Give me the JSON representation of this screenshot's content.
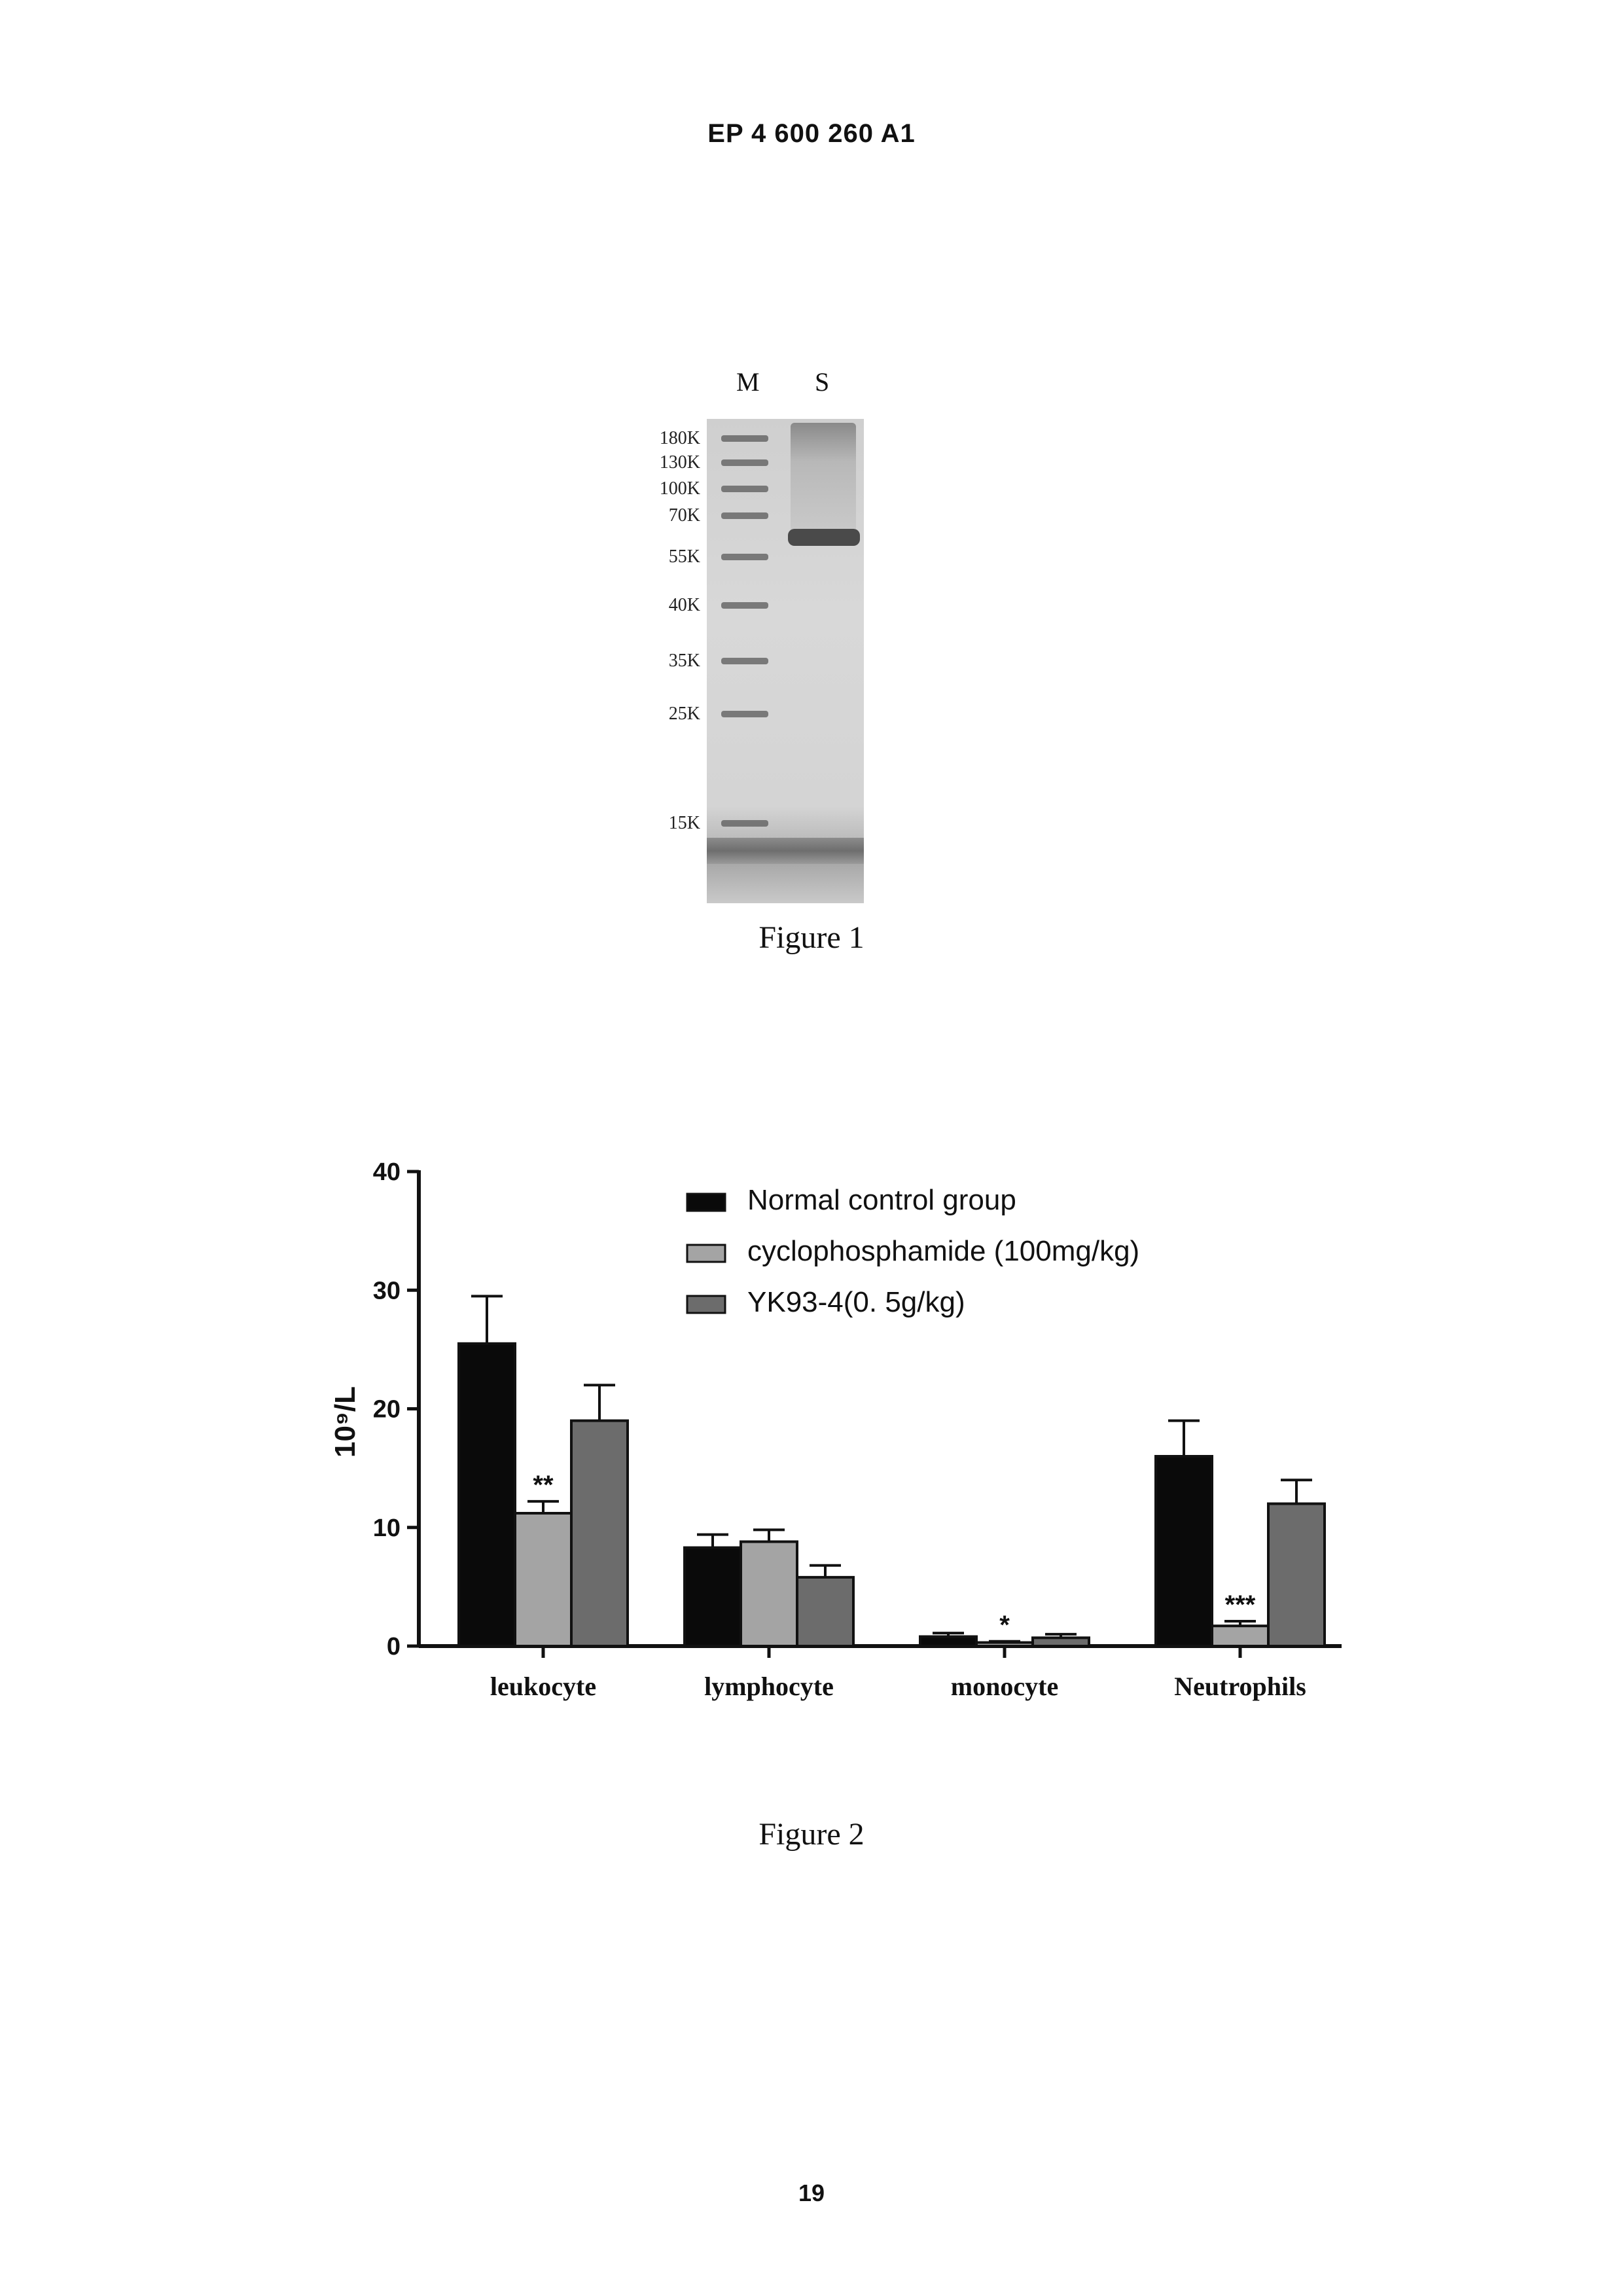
{
  "header": {
    "publication": "EP 4 600 260 A1"
  },
  "figure1": {
    "caption": "Figure 1",
    "lanes": [
      "M",
      "S"
    ],
    "markers": [
      {
        "label": "180K",
        "pos": 0.04
      },
      {
        "label": "130K",
        "pos": 0.09
      },
      {
        "label": "100K",
        "pos": 0.145
      },
      {
        "label": "70K",
        "pos": 0.2
      },
      {
        "label": "55K",
        "pos": 0.285
      },
      {
        "label": "40K",
        "pos": 0.385
      },
      {
        "label": "35K",
        "pos": 0.5
      },
      {
        "label": "25K",
        "pos": 0.61
      },
      {
        "label": "15K",
        "pos": 0.835
      }
    ],
    "sample_band_pos": 0.245
  },
  "figure2": {
    "caption": "Figure 2",
    "chart_data": {
      "type": "bar",
      "categories": [
        "leukocyte",
        "lymphocyte",
        "monocyte",
        "Neutrophils"
      ],
      "ylabel": "10⁹/L",
      "ylim": [
        0,
        40
      ],
      "yticks": [
        0,
        10,
        20,
        30,
        40
      ],
      "legend_position": "top-right",
      "series": [
        {
          "name": "Normal control group",
          "color": "#0a0a0a",
          "values": [
            25.5,
            8.3,
            0.8,
            16
          ],
          "errors": [
            4,
            1.1,
            0.3,
            3
          ]
        },
        {
          "name": "cyclophosphamide (100mg/kg)",
          "color": "#a4a4a4",
          "values": [
            11.2,
            8.8,
            0.3,
            1.7
          ],
          "errors": [
            1,
            1,
            0.1,
            0.4
          ]
        },
        {
          "name": "YK93-4(0. 5g/kg)",
          "color": "#6c6c6c",
          "values": [
            19,
            5.8,
            0.7,
            12
          ],
          "errors": [
            3,
            1,
            0.3,
            2
          ]
        }
      ],
      "significance": [
        {
          "category": 0,
          "series": 1,
          "label": "**"
        },
        {
          "category": 2,
          "series": 1,
          "label": "*"
        },
        {
          "category": 3,
          "series": 1,
          "label": "***"
        }
      ]
    }
  },
  "footer": {
    "page_number": "19"
  }
}
